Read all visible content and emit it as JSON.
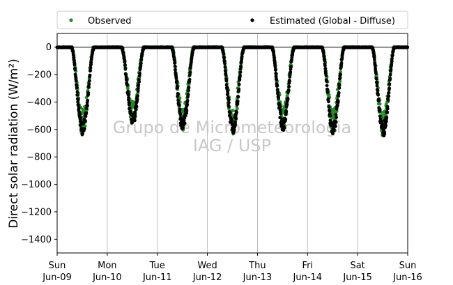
{
  "chart_data": {
    "type": "scatter",
    "ylabel": "Direct solar radiation (W/m²)",
    "ylim": [
      -1500,
      100
    ],
    "yticks": [
      0,
      -200,
      -400,
      -600,
      -800,
      -1000,
      -1200,
      -1400
    ],
    "xlim": [
      "2017-06-09",
      "2017-06-16"
    ],
    "xticks": [
      {
        "day": "Sun",
        "date": "Jun-09"
      },
      {
        "day": "Mon",
        "date": "Jun-10"
      },
      {
        "day": "Tue",
        "date": "Jun-11"
      },
      {
        "day": "Wed",
        "date": "Jun-12"
      },
      {
        "day": "Thu",
        "date": "Jun-13"
      },
      {
        "day": "Fri",
        "date": "Jun-14"
      },
      {
        "day": "Sat",
        "date": "Jun-15"
      },
      {
        "day": "Sun",
        "date": "Jun-16"
      }
    ],
    "grid": "vertical",
    "legend_position": "top",
    "watermark": [
      "Grupo de Micrometeorologia",
      "IAG / USP"
    ],
    "series": [
      {
        "name": "Observed",
        "color": "#228b22",
        "marker": "dot"
      },
      {
        "name": "Estimated (Global - Diffuse)",
        "color": "#000000",
        "marker": "dot"
      }
    ],
    "days": [
      {
        "date": "2017-06-09",
        "daylight": [
          "07:00",
          "17:30"
        ],
        "min_value": -635
      },
      {
        "date": "2017-06-10",
        "daylight": [
          "07:00",
          "17:30"
        ],
        "min_value": -560
      },
      {
        "date": "2017-06-11",
        "daylight": [
          "07:00",
          "17:30"
        ],
        "min_value": -600
      },
      {
        "date": "2017-06-12",
        "daylight": [
          "07:00",
          "17:30"
        ],
        "min_value": -620
      },
      {
        "date": "2017-06-13",
        "daylight": [
          "07:00",
          "17:30"
        ],
        "min_value": -605
      },
      {
        "date": "2017-06-14",
        "daylight": [
          "07:00",
          "17:30"
        ],
        "min_value": -640
      },
      {
        "date": "2017-06-15",
        "daylight": [
          "07:00",
          "17:30"
        ],
        "min_value": -645
      }
    ]
  }
}
